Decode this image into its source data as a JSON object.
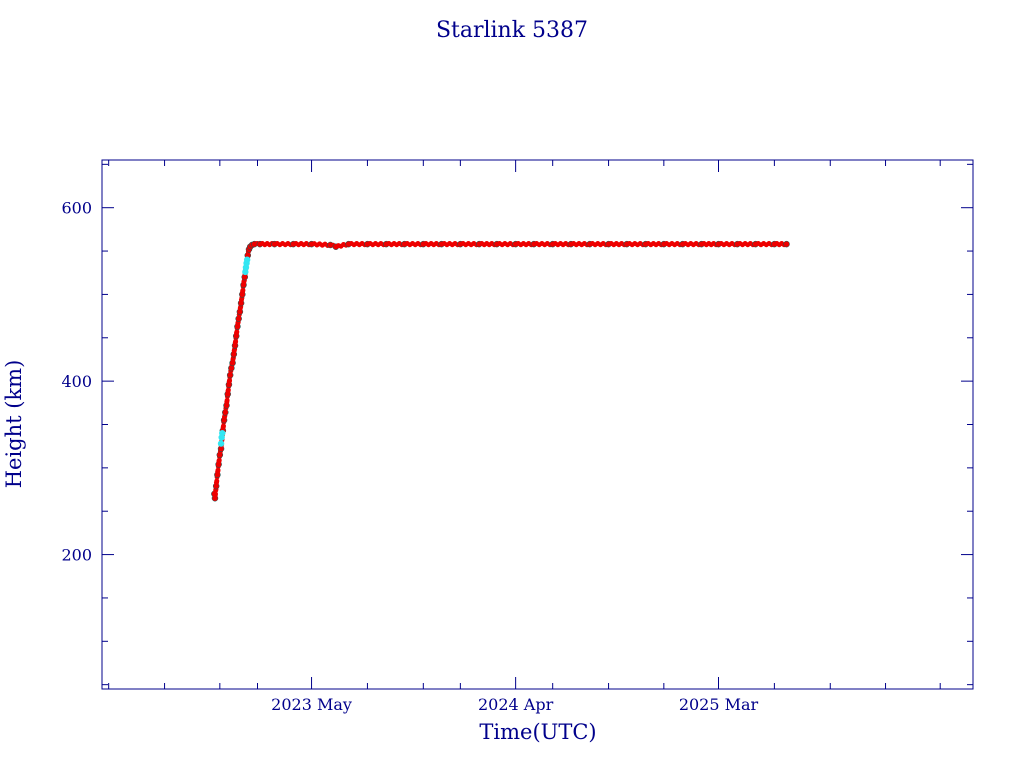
{
  "chart_data": {
    "type": "scatter",
    "title": "Starlink 5387",
    "xlabel": "Time(UTC)",
    "ylabel": "Height (km)",
    "x_ticks": [
      {
        "date": "2023-05-01",
        "label": "2023 May"
      },
      {
        "date": "2024-04-01",
        "label": "2024 Apr"
      },
      {
        "date": "2025-03-01",
        "label": "2025 Mar"
      }
    ],
    "xlim": [
      "2022-05-21",
      "2026-04-24"
    ],
    "ylim": [
      45,
      655
    ],
    "y_ticks": [
      200,
      400,
      600
    ],
    "colors": {
      "axis": "#00008b",
      "primary": "#ee0000",
      "secondary": "#33e6f2",
      "marker_edge": "#006060"
    },
    "series": [
      {
        "color": "#ee0000",
        "points": [
          [
            "2022-11-22",
            270
          ],
          [
            "2022-11-23",
            265
          ],
          [
            "2022-11-25",
            279
          ],
          [
            "2022-11-27",
            292
          ],
          [
            "2022-11-29",
            304
          ],
          [
            "2022-12-01",
            315
          ],
          [
            "2022-12-03",
            322
          ],
          [
            "2022-12-06",
            343
          ],
          [
            "2022-12-08",
            355
          ],
          [
            "2022-12-10",
            364
          ],
          [
            "2022-12-12",
            372
          ],
          [
            "2022-12-14",
            385
          ],
          [
            "2022-12-16",
            396
          ],
          [
            "2022-12-18",
            407
          ],
          [
            "2022-12-20",
            415
          ],
          [
            "2022-12-22",
            421
          ],
          [
            "2022-12-24",
            431
          ],
          [
            "2022-12-26",
            441
          ],
          [
            "2022-12-28",
            452
          ],
          [
            "2022-12-30",
            463
          ],
          [
            "2023-01-01",
            472
          ],
          [
            "2023-01-03",
            480
          ],
          [
            "2023-01-05",
            490
          ],
          [
            "2023-01-07",
            500
          ],
          [
            "2023-01-09",
            511
          ],
          [
            "2023-01-11",
            520
          ],
          [
            "2023-01-16",
            545
          ],
          [
            "2023-01-18",
            552
          ],
          [
            "2023-01-20",
            555
          ],
          [
            "2023-01-23",
            557
          ],
          [
            "2023-01-27",
            558
          ],
          [
            "2023-02-05",
            558
          ],
          [
            "2023-03-01",
            558
          ],
          [
            "2023-04-01",
            558
          ],
          [
            "2023-05-01",
            558
          ],
          [
            "2023-06-01",
            557
          ],
          [
            "2023-06-10",
            555
          ],
          [
            "2023-07-01",
            558
          ],
          [
            "2023-08-01",
            558
          ],
          [
            "2023-09-01",
            558
          ],
          [
            "2023-10-01",
            558
          ],
          [
            "2023-11-01",
            558
          ],
          [
            "2023-12-01",
            558
          ],
          [
            "2024-01-01",
            558
          ],
          [
            "2024-02-01",
            558
          ],
          [
            "2024-03-01",
            558
          ],
          [
            "2024-04-01",
            558
          ],
          [
            "2024-05-01",
            558
          ],
          [
            "2024-06-01",
            558
          ],
          [
            "2024-07-01",
            558
          ],
          [
            "2024-08-01",
            558
          ],
          [
            "2024-09-01",
            558
          ],
          [
            "2024-10-01",
            558
          ],
          [
            "2024-11-01",
            558
          ],
          [
            "2024-12-01",
            558
          ],
          [
            "2025-01-01",
            558
          ],
          [
            "2025-02-01",
            558
          ],
          [
            "2025-03-01",
            558
          ],
          [
            "2025-04-01",
            558
          ],
          [
            "2025-05-01",
            558
          ],
          [
            "2025-06-01",
            558
          ],
          [
            "2025-06-21",
            558
          ]
        ]
      },
      {
        "color": "#33e6f2",
        "points": [
          [
            "2022-12-03",
            328
          ],
          [
            "2022-12-04",
            335
          ],
          [
            "2022-12-05",
            340
          ],
          [
            "2023-01-12",
            526
          ],
          [
            "2023-01-13",
            531
          ],
          [
            "2023-01-14",
            536
          ],
          [
            "2023-01-15",
            540
          ]
        ]
      }
    ]
  }
}
